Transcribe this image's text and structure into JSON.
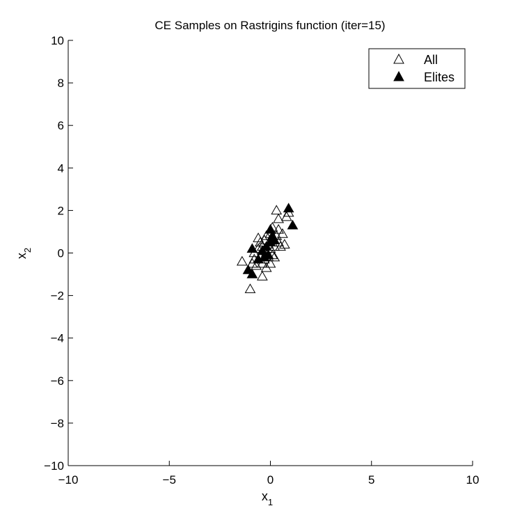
{
  "chart_data": {
    "type": "scatter",
    "title": "CE Samples on Rastrigins function (iter=15)",
    "xlabel": {
      "base": "x",
      "sub": "1"
    },
    "ylabel": {
      "base": "x",
      "sub": "2"
    },
    "xlim": [
      -10,
      10
    ],
    "ylim": [
      -10,
      10
    ],
    "xticks": [
      -10,
      -5,
      0,
      5,
      10
    ],
    "yticks": [
      -10,
      -8,
      -6,
      -4,
      -2,
      0,
      2,
      4,
      6,
      8,
      10
    ],
    "xtick_labels": [
      "−10",
      "−5",
      "0",
      "5",
      "10"
    ],
    "ytick_labels": [
      "−10",
      "−8",
      "−6",
      "−4",
      "−2",
      "0",
      "2",
      "4",
      "6",
      "8",
      "10"
    ],
    "grid": false,
    "legend": {
      "position": "top-right",
      "entries": [
        "All",
        "Elites"
      ]
    },
    "series": [
      {
        "name": "All",
        "marker": "open-triangle",
        "color": "#000000",
        "points": [
          [
            -1.4,
            -0.4
          ],
          [
            -1.0,
            -1.7
          ],
          [
            -0.9,
            -0.5
          ],
          [
            -0.8,
            -0.3
          ],
          [
            -0.7,
            -0.6
          ],
          [
            -0.6,
            0.7
          ],
          [
            -0.6,
            0.2
          ],
          [
            -0.5,
            -0.2
          ],
          [
            -0.5,
            0.5
          ],
          [
            -0.4,
            -1.1
          ],
          [
            -0.4,
            0.3
          ],
          [
            -0.4,
            -0.5
          ],
          [
            -0.3,
            0.1
          ],
          [
            -0.3,
            0.6
          ],
          [
            -0.3,
            -0.3
          ],
          [
            -0.2,
            0.0
          ],
          [
            -0.2,
            0.8
          ],
          [
            -0.2,
            -0.7
          ],
          [
            -0.1,
            0.4
          ],
          [
            -0.1,
            -0.2
          ],
          [
            0.0,
            0.2
          ],
          [
            0.0,
            0.9
          ],
          [
            0.0,
            -0.5
          ],
          [
            0.1,
            0.6
          ],
          [
            0.1,
            1.2
          ],
          [
            0.2,
            0.3
          ],
          [
            0.2,
            -0.2
          ],
          [
            0.3,
            0.8
          ],
          [
            0.3,
            2.0
          ],
          [
            0.4,
            0.5
          ],
          [
            0.4,
            1.6
          ],
          [
            0.4,
            1.1
          ],
          [
            0.5,
            0.3
          ],
          [
            0.6,
            0.9
          ],
          [
            0.7,
            0.4
          ],
          [
            0.8,
            1.7
          ],
          [
            0.9,
            1.9
          ],
          [
            -0.8,
            0.0
          ],
          [
            0.1,
            -0.1
          ]
        ]
      },
      {
        "name": "Elites",
        "marker": "filled-triangle",
        "color": "#000000",
        "points": [
          [
            -1.1,
            -0.8
          ],
          [
            -0.9,
            -1.0
          ],
          [
            -0.9,
            0.2
          ],
          [
            -0.6,
            -0.3
          ],
          [
            -0.4,
            0.1
          ],
          [
            -0.3,
            -0.2
          ],
          [
            -0.2,
            0.3
          ],
          [
            -0.1,
            -0.1
          ],
          [
            0.0,
            0.5
          ],
          [
            0.0,
            1.1
          ],
          [
            0.1,
            0.8
          ],
          [
            0.2,
            0.6
          ],
          [
            0.9,
            2.1
          ],
          [
            1.1,
            1.3
          ]
        ]
      }
    ]
  }
}
